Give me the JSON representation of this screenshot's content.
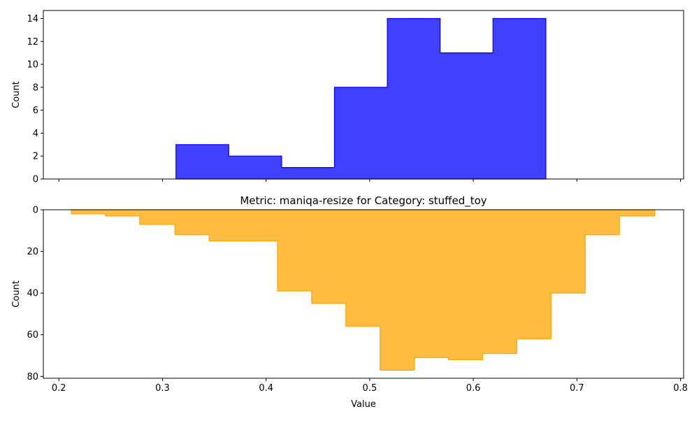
{
  "chart_data": [
    {
      "type": "bar",
      "subtype": "step-histogram",
      "title": "",
      "xlabel": "",
      "ylabel": "Count",
      "xlim": [
        0.185,
        0.803
      ],
      "ylim": [
        0,
        14.7
      ],
      "yticks": [
        0,
        2,
        4,
        6,
        8,
        10,
        12,
        14
      ],
      "xticks": [
        0.2,
        0.3,
        0.4,
        0.5,
        0.6,
        0.7,
        0.8
      ],
      "show_xtick_labels": false,
      "color": "#0000ff",
      "bin_edges": [
        0.313,
        0.364,
        0.415,
        0.466,
        0.517,
        0.568,
        0.619,
        0.67
      ],
      "values": [
        3,
        2,
        1,
        8,
        14,
        11,
        14
      ],
      "grid": false,
      "legend": "none"
    },
    {
      "type": "bar",
      "subtype": "step-histogram",
      "title": "Metric: maniqa-resize for Category: stuffed_toy",
      "xlabel": "Value",
      "ylabel": "Count",
      "xlim": [
        0.185,
        0.803
      ],
      "ylim": [
        80.9,
        0
      ],
      "y_inverted": true,
      "yticks": [
        0,
        20,
        40,
        60,
        80
      ],
      "xticks": [
        0.2,
        0.3,
        0.4,
        0.5,
        0.6,
        0.7,
        0.8
      ],
      "xtick_labels": [
        "0.2",
        "0.3",
        "0.4",
        "0.5",
        "0.6",
        "0.7",
        "0.8"
      ],
      "color": "#ffa500",
      "bin_edges": [
        0.212,
        0.245,
        0.278,
        0.312,
        0.345,
        0.378,
        0.411,
        0.444,
        0.477,
        0.51,
        0.543,
        0.576,
        0.609,
        0.642,
        0.675,
        0.708,
        0.741,
        0.775
      ],
      "values": [
        2,
        3,
        7,
        12,
        15,
        15,
        39,
        45,
        56,
        77,
        71,
        72,
        69,
        62,
        40,
        12,
        3
      ],
      "grid": false,
      "legend": "none"
    }
  ]
}
